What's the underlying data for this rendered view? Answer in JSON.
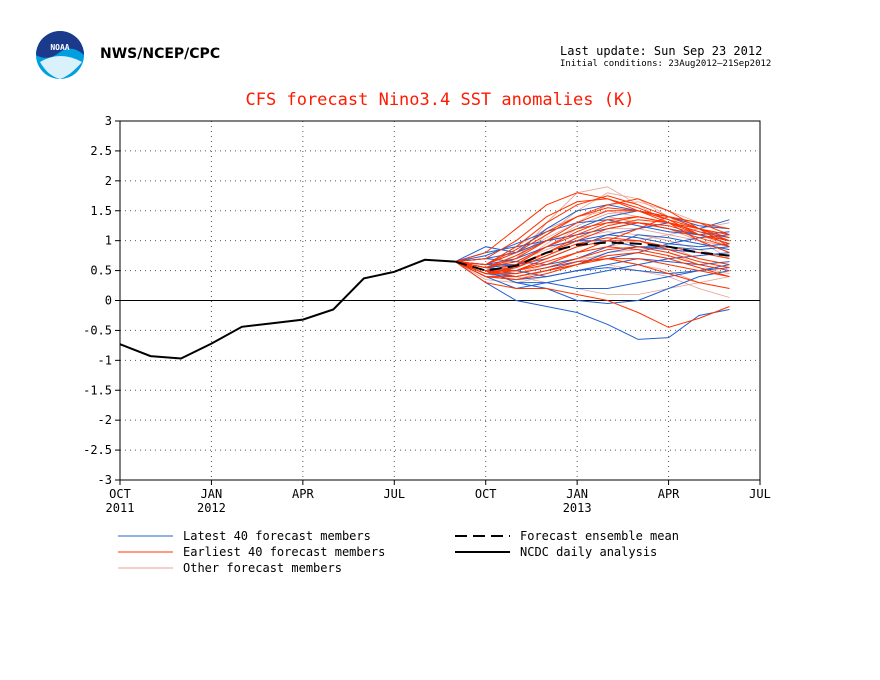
{
  "header": {
    "org": "NWS/NCEP/CPC",
    "last_update": "Last update: Sun Sep 23 2012",
    "initial_conditions": "Initial conditions: 23Aug2012–21Sep2012"
  },
  "logo": {
    "text": "NOAA",
    "icon": "noaa-logo"
  },
  "colors": {
    "title": "#ff1a00",
    "latest": "#2060d0",
    "earliest": "#ff3300",
    "other": "#e8a090",
    "analysis": "#000000"
  },
  "chart_data": {
    "type": "line",
    "title": "CFS forecast Nino3.4 SST anomalies (K)",
    "xlabel": "",
    "ylabel": "",
    "ylim": [
      -3,
      3
    ],
    "yticks": [
      -3,
      -2.5,
      -2,
      -1.5,
      -1,
      -0.5,
      0,
      0.5,
      1,
      1.5,
      2,
      2.5,
      3
    ],
    "xlim": [
      "2011-10",
      "2013-07"
    ],
    "xticks": [
      {
        "month": "2011-10",
        "label": "OCT",
        "year": "2011"
      },
      {
        "month": "2012-01",
        "label": "JAN",
        "year": "2012"
      },
      {
        "month": "2012-04",
        "label": "APR",
        "year": ""
      },
      {
        "month": "2012-07",
        "label": "JUL",
        "year": ""
      },
      {
        "month": "2012-10",
        "label": "OCT",
        "year": ""
      },
      {
        "month": "2013-01",
        "label": "JAN",
        "year": "2013"
      },
      {
        "month": "2013-04",
        "label": "APR",
        "year": ""
      },
      {
        "month": "2013-07",
        "label": "JUL",
        "year": ""
      }
    ],
    "grid": true,
    "zero_line": true,
    "legend": {
      "placement": "bottom",
      "entries": [
        {
          "name": "Latest 40 forecast members",
          "style": "latest"
        },
        {
          "name": "Earliest 40 forecast members",
          "style": "earliest"
        },
        {
          "name": "Other forecast members",
          "style": "other"
        },
        {
          "name": "Forecast ensemble mean",
          "style": "mean"
        },
        {
          "name": "NCDC daily analysis",
          "style": "analysis"
        }
      ]
    },
    "series": [
      {
        "name": "NCDC daily analysis",
        "style": "analysis",
        "x": [
          "2011-10-01",
          "2011-11-01",
          "2011-12-01",
          "2012-01-01",
          "2012-02-01",
          "2012-03-01",
          "2012-04-01",
          "2012-05-01",
          "2012-06-01",
          "2012-07-01",
          "2012-08-01",
          "2012-09-01"
        ],
        "values": [
          -0.73,
          -0.93,
          -0.97,
          -0.72,
          -0.44,
          -0.38,
          -0.32,
          -0.15,
          0.37,
          0.48,
          0.68,
          0.65
        ]
      },
      {
        "name": "Forecast ensemble mean",
        "style": "mean",
        "x": [
          "2012-09-01",
          "2012-10-01",
          "2012-11-01",
          "2012-12-01",
          "2013-01-01",
          "2013-02-01",
          "2013-03-01",
          "2013-04-01",
          "2013-05-01",
          "2013-06-01"
        ],
        "values": [
          0.65,
          0.5,
          0.58,
          0.8,
          0.93,
          0.97,
          0.95,
          0.9,
          0.8,
          0.75
        ]
      }
    ],
    "ensemble": {
      "x": [
        "2012-09-01",
        "2012-10-01",
        "2012-11-01",
        "2012-12-01",
        "2013-01-01",
        "2013-02-01",
        "2013-03-01",
        "2013-04-01",
        "2013-05-01",
        "2013-06-01"
      ],
      "groups": [
        {
          "style": "other",
          "members": [
            [
              0.65,
              0.55,
              0.7,
              1.1,
              1.5,
              1.8,
              1.7,
              1.4,
              1.1,
              0.9
            ],
            [
              0.65,
              0.5,
              0.6,
              0.9,
              1.2,
              1.4,
              1.3,
              1.2,
              1.0,
              0.8
            ],
            [
              0.65,
              0.45,
              0.5,
              0.7,
              0.9,
              1.0,
              0.9,
              0.8,
              0.6,
              0.5
            ],
            [
              0.65,
              0.6,
              0.8,
              1.0,
              1.1,
              1.2,
              1.2,
              1.1,
              1.0,
              0.9
            ],
            [
              0.65,
              0.4,
              0.4,
              0.5,
              0.6,
              0.7,
              0.6,
              0.5,
              0.3,
              0.2
            ],
            [
              0.65,
              0.5,
              0.7,
              1.3,
              1.8,
              1.9,
              1.6,
              1.3,
              1.0,
              0.7
            ],
            [
              0.65,
              0.55,
              0.45,
              0.6,
              0.8,
              0.9,
              1.0,
              1.1,
              1.2,
              1.3
            ],
            [
              0.65,
              0.35,
              0.3,
              0.4,
              0.5,
              0.6,
              0.5,
              0.4,
              0.2,
              0.05
            ],
            [
              0.65,
              0.5,
              0.55,
              0.75,
              1.0,
              1.2,
              1.3,
              1.2,
              1.0,
              0.9
            ],
            [
              0.65,
              0.45,
              0.6,
              0.95,
              1.25,
              1.45,
              1.5,
              1.35,
              1.2,
              1.05
            ],
            [
              0.65,
              0.5,
              0.4,
              0.3,
              0.2,
              0.1,
              0.1,
              0.2,
              0.3,
              0.4
            ],
            [
              0.65,
              0.6,
              0.9,
              1.2,
              1.4,
              1.5,
              1.4,
              1.3,
              1.1,
              1.0
            ],
            [
              0.65,
              0.4,
              0.45,
              0.55,
              0.7,
              0.75,
              0.8,
              0.7,
              0.55,
              0.45
            ],
            [
              0.65,
              0.55,
              0.65,
              0.85,
              1.05,
              1.15,
              1.1,
              1.0,
              0.85,
              0.7
            ],
            [
              0.65,
              0.5,
              0.75,
              1.05,
              1.3,
              1.6,
              1.65,
              1.5,
              1.3,
              1.1
            ],
            [
              0.65,
              0.45,
              0.35,
              0.5,
              0.65,
              0.8,
              0.85,
              0.9,
              0.7,
              0.6
            ]
          ]
        },
        {
          "style": "latest",
          "members": [
            [
              0.65,
              0.9,
              0.8,
              1.0,
              1.2,
              1.4,
              1.5,
              1.4,
              1.2,
              1.35
            ],
            [
              0.65,
              0.8,
              0.9,
              1.0,
              1.1,
              1.2,
              1.3,
              1.2,
              1.1,
              1.0
            ],
            [
              0.65,
              0.5,
              0.3,
              0.2,
              0.0,
              -0.05,
              0.0,
              0.2,
              0.4,
              0.5
            ],
            [
              0.65,
              0.3,
              0.0,
              -0.1,
              -0.2,
              -0.4,
              -0.65,
              -0.62,
              -0.25,
              -0.15
            ],
            [
              0.65,
              0.4,
              0.2,
              0.3,
              0.4,
              0.5,
              0.6,
              0.7,
              0.75,
              0.8
            ],
            [
              0.65,
              0.6,
              0.6,
              0.7,
              0.9,
              1.1,
              1.2,
              1.3,
              1.15,
              1.05
            ],
            [
              0.65,
              0.7,
              0.8,
              1.2,
              1.5,
              1.6,
              1.5,
              1.4,
              1.25,
              1.2
            ],
            [
              0.65,
              0.45,
              0.4,
              0.5,
              0.6,
              0.8,
              0.9,
              0.9,
              0.85,
              0.9
            ],
            [
              0.65,
              0.55,
              0.5,
              0.4,
              0.5,
              0.6,
              0.7,
              0.65,
              0.6,
              0.65
            ],
            [
              0.65,
              0.5,
              0.3,
              0.3,
              0.2,
              0.2,
              0.3,
              0.4,
              0.5,
              0.6
            ],
            [
              0.65,
              0.6,
              0.7,
              0.9,
              1.0,
              1.0,
              0.9,
              0.85,
              0.8,
              0.75
            ],
            [
              0.65,
              0.75,
              0.95,
              1.15,
              1.3,
              1.35,
              1.25,
              1.15,
              1.1,
              1.15
            ],
            [
              0.65,
              0.5,
              0.45,
              0.55,
              0.65,
              0.7,
              0.8,
              0.95,
              1.05,
              1.1
            ],
            [
              0.65,
              0.4,
              0.35,
              0.4,
              0.5,
              0.55,
              0.5,
              0.45,
              0.5,
              0.55
            ],
            [
              0.65,
              0.55,
              0.6,
              0.8,
              1.0,
              1.1,
              1.05,
              0.95,
              0.9,
              0.95
            ],
            [
              0.65,
              0.7,
              0.65,
              0.6,
              0.7,
              0.9,
              1.1,
              1.05,
              0.95,
              0.85
            ]
          ]
        },
        {
          "style": "earliest",
          "members": [
            [
              0.65,
              0.8,
              1.2,
              1.6,
              1.8,
              1.7,
              1.5,
              1.3,
              1.0,
              0.8
            ],
            [
              0.65,
              0.6,
              0.8,
              1.1,
              1.4,
              1.6,
              1.7,
              1.5,
              1.2,
              0.9
            ],
            [
              0.65,
              0.5,
              0.6,
              0.9,
              1.1,
              1.3,
              1.4,
              1.3,
              1.1,
              1.0
            ],
            [
              0.65,
              0.45,
              0.5,
              0.7,
              0.9,
              1.0,
              1.0,
              0.9,
              0.8,
              0.7
            ],
            [
              0.65,
              0.4,
              0.4,
              0.5,
              0.6,
              0.7,
              0.7,
              0.6,
              0.5,
              0.4
            ],
            [
              0.65,
              0.3,
              0.2,
              0.2,
              0.1,
              0.0,
              -0.2,
              -0.45,
              -0.3,
              -0.1
            ],
            [
              0.65,
              0.5,
              0.5,
              0.6,
              0.8,
              1.0,
              1.2,
              1.4,
              1.3,
              1.2
            ],
            [
              0.65,
              0.55,
              0.7,
              1.0,
              1.3,
              1.5,
              1.5,
              1.4,
              1.3,
              1.1
            ],
            [
              0.65,
              0.6,
              0.9,
              1.3,
              1.6,
              1.75,
              1.6,
              1.4,
              1.2,
              1.0
            ],
            [
              0.65,
              0.5,
              0.55,
              0.75,
              0.95,
              1.05,
              1.0,
              0.85,
              0.7,
              0.6
            ],
            [
              0.65,
              0.45,
              0.45,
              0.55,
              0.7,
              0.85,
              0.9,
              0.8,
              0.65,
              0.55
            ],
            [
              0.65,
              0.55,
              0.75,
              1.0,
              1.2,
              1.3,
              1.3,
              1.2,
              1.05,
              0.9
            ],
            [
              0.65,
              0.4,
              0.35,
              0.45,
              0.6,
              0.75,
              0.8,
              0.7,
              0.55,
              0.4
            ],
            [
              0.65,
              0.7,
              1.0,
              1.4,
              1.65,
              1.7,
              1.55,
              1.35,
              1.1,
              0.95
            ],
            [
              0.65,
              0.5,
              0.6,
              0.8,
              1.0,
              1.2,
              1.3,
              1.25,
              1.1,
              0.95
            ],
            [
              0.65,
              0.45,
              0.5,
              0.65,
              0.8,
              0.9,
              0.85,
              0.75,
              0.6,
              0.5
            ],
            [
              0.65,
              0.55,
              0.65,
              0.9,
              1.15,
              1.35,
              1.4,
              1.3,
              1.15,
              1.0
            ],
            [
              0.65,
              0.5,
              0.4,
              0.5,
              0.65,
              0.7,
              0.6,
              0.45,
              0.3,
              0.2
            ],
            [
              0.65,
              0.6,
              0.85,
              1.15,
              1.4,
              1.55,
              1.5,
              1.35,
              1.2,
              1.05
            ],
            [
              0.65,
              0.45,
              0.55,
              0.8,
              1.05,
              1.25,
              1.35,
              1.3,
              1.2,
              1.1
            ]
          ]
        }
      ]
    }
  }
}
